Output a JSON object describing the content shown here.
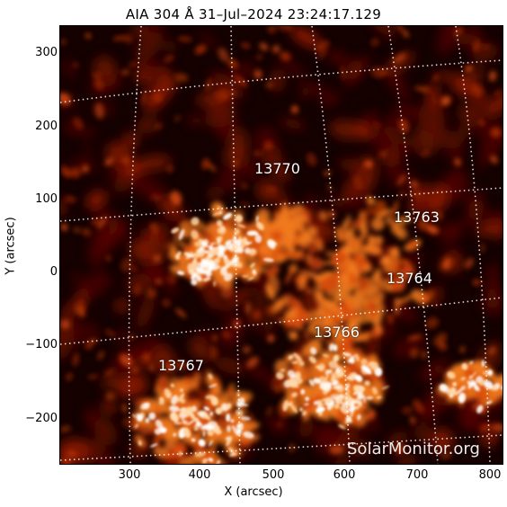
{
  "title": "AIA 304 Å 31–Jul–2024 23:24:17.129",
  "xlabel": "X (arcsec)",
  "ylabel": "Y (arcsec)",
  "x_ticks": [
    "300",
    "400",
    "500",
    "600",
    "700",
    "800"
  ],
  "y_ticks": [
    "300",
    "200",
    "100",
    "0",
    "−100",
    "−200"
  ],
  "active_regions": [
    {
      "id": "ar-13770",
      "label": "13770"
    },
    {
      "id": "ar-13763",
      "label": "13763"
    },
    {
      "id": "ar-13764",
      "label": "13764"
    },
    {
      "id": "ar-13766",
      "label": "13766"
    },
    {
      "id": "ar-13767",
      "label": "13767"
    }
  ],
  "watermark": "SolarMonitor.org",
  "colors": {
    "background": "#120000",
    "grid": "#ffffff",
    "emission_low": "#5a0800",
    "emission_mid": "#d2480c",
    "emission_high": "#ffffff"
  }
}
